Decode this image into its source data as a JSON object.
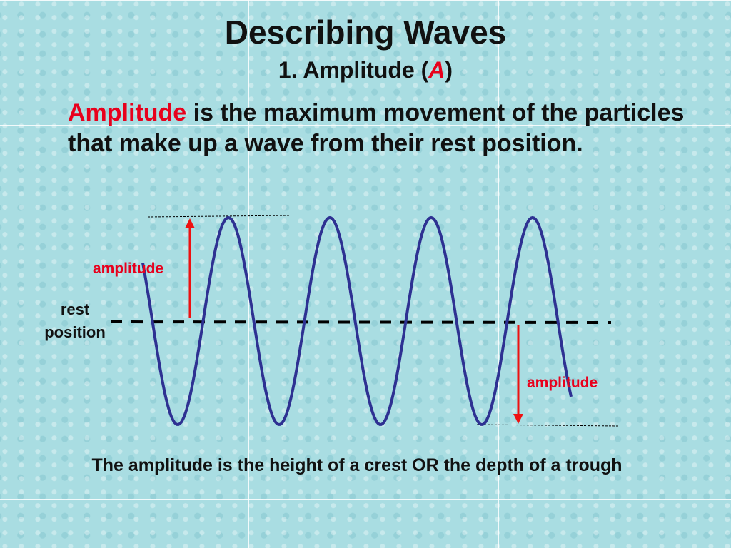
{
  "slide": {
    "title": "Describing Waves",
    "subtitle_prefix": "1. Amplitude (",
    "subtitle_symbol": "A",
    "subtitle_suffix": ")",
    "definition_term": "Amplitude",
    "definition_text": " is the maximum movement of the particles that make up a wave from their rest position.",
    "caption": "The amplitude is the height of a crest OR the depth of a trough"
  },
  "diagram": {
    "label_amplitude_top": "amplitude",
    "label_amplitude_bottom": "amplitude",
    "label_rest_line1": "rest",
    "label_rest_line2": "position",
    "colors": {
      "wave": "#2e3192",
      "arrow": "#ee1111",
      "rest_line": "#000000",
      "highlight_text": "#e8001c"
    }
  }
}
